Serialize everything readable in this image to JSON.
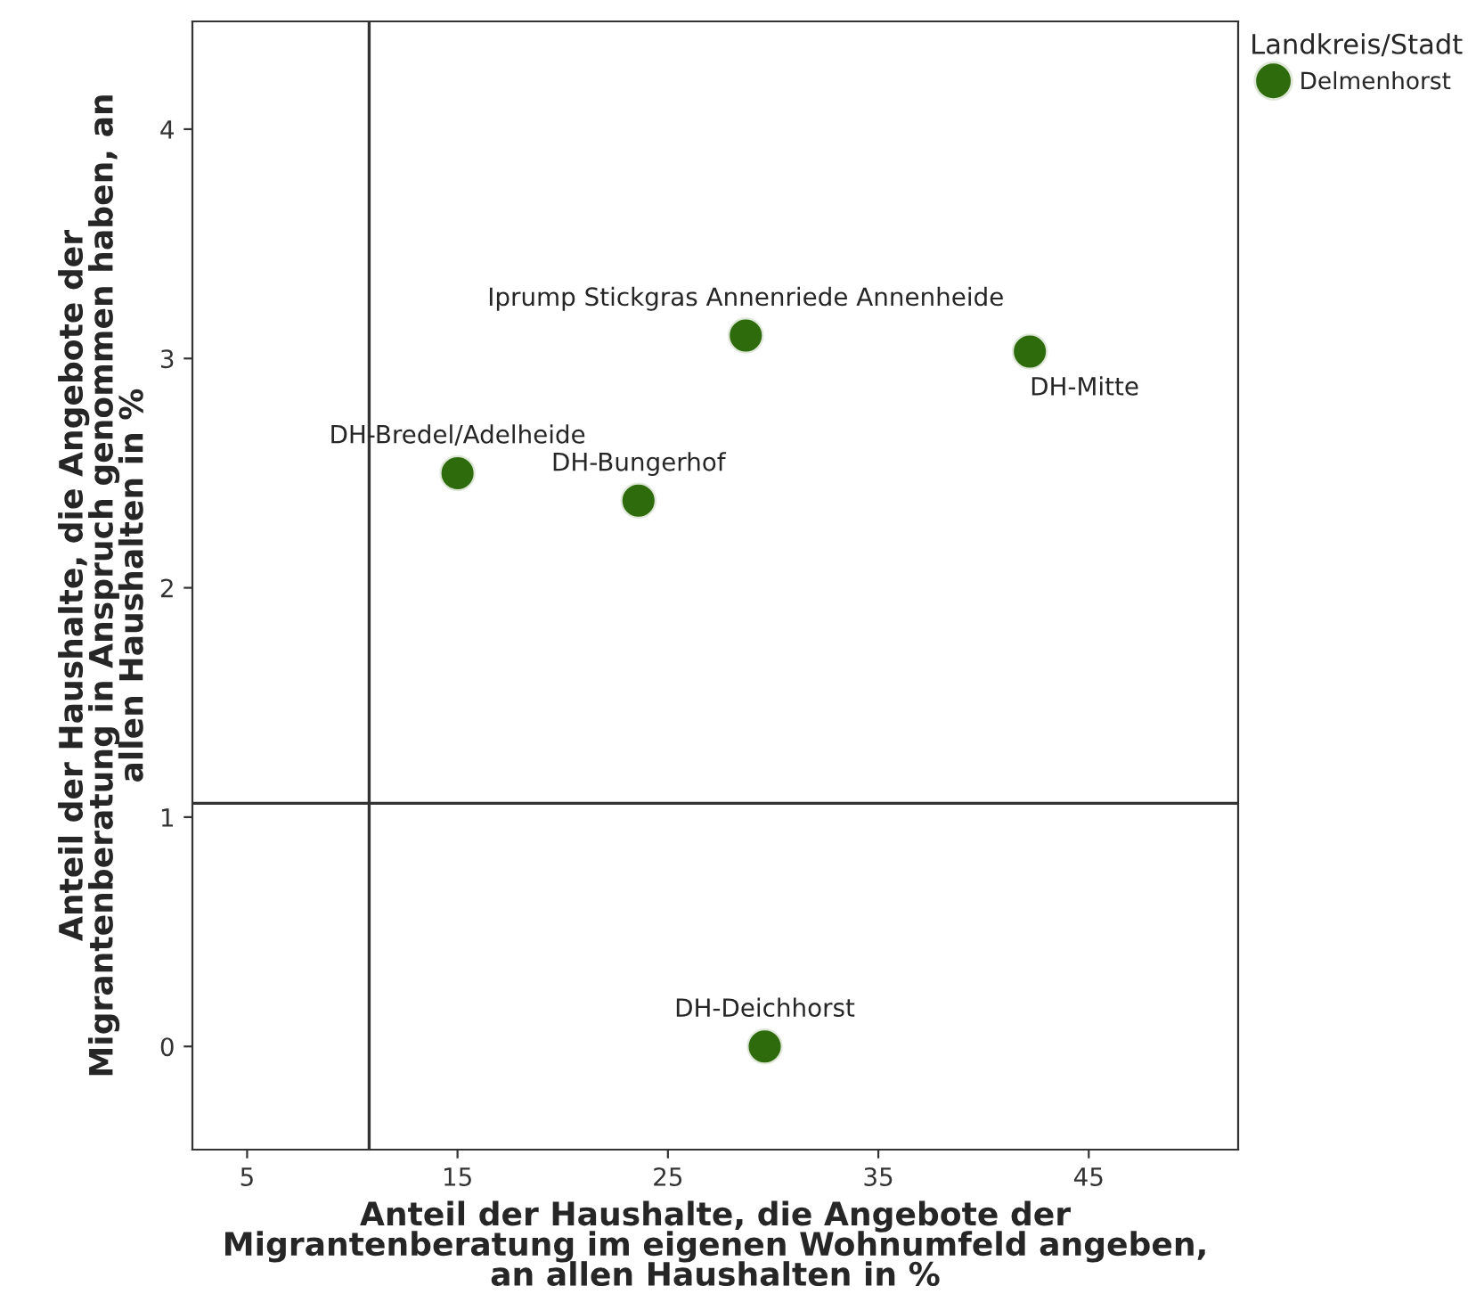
{
  "chart_data": {
    "type": "scatter",
    "xlabel": "Anteil der Haushalte, die Angebote der\nMigrantenberatung im eigenen Wohnumfeld angeben,\nan allen Haushalten in %",
    "ylabel": "Anteil der Haushalte, die Angebote der\nMigrantenberatung in Anspruch genommen haben, an\nallen Haushalten in %",
    "legend_title": "Landkreis/Stadt",
    "series": [
      {
        "name": "Delmenhorst",
        "color": "#2e6b0c",
        "x": [
          15.0,
          23.6,
          28.7,
          42.2,
          29.6
        ],
        "values": [
          2.5,
          2.38,
          3.1,
          3.03,
          0.0
        ]
      }
    ],
    "annotations": [
      {
        "text": "DH-Bredel/Adelheide",
        "x": 15.0,
        "y": 2.5
      },
      {
        "text": "DH-Bungerhof",
        "x": 23.6,
        "y": 2.38
      },
      {
        "text": "Iprump Stickgras Annenriede Annenheide",
        "x": 28.7,
        "y": 3.1
      },
      {
        "text": "DH-Mitte",
        "x": 42.2,
        "y": 3.03
      },
      {
        "text": "DH-Deichhorst",
        "x": 29.6,
        "y": 0.0
      }
    ],
    "ref_lines": [
      {
        "axis": "x",
        "value": 10.8
      },
      {
        "axis": "y",
        "value": 1.06
      }
    ],
    "xlim": [
      2.4,
      52.1
    ],
    "xticks": [
      5,
      15,
      25,
      35,
      45
    ],
    "ylim": [
      -0.45,
      4.47
    ],
    "yticks": [
      0,
      1,
      2,
      3,
      4
    ],
    "grid": false,
    "legend": "top right",
    "marker": "circle"
  }
}
